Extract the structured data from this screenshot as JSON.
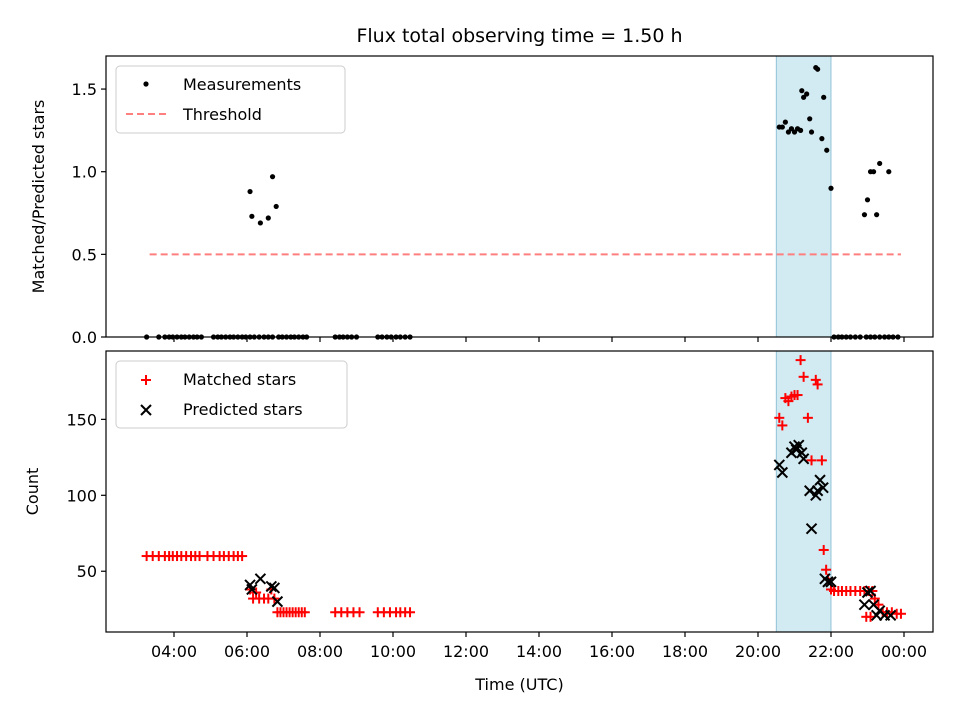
{
  "title": "Flux total observing time = 1.50 h",
  "colors": {
    "measurements": "#000000",
    "threshold": "#ff7f7f",
    "matched": "#ff0000",
    "predicted": "#000000",
    "span": "#add8e6"
  },
  "chart_data": [
    {
      "type": "scatter",
      "ylabel": "Matched/Predicted stars",
      "ylim": [
        0,
        1.7
      ],
      "yticks": [
        {
          "v": 0.0,
          "label": "0.0"
        },
        {
          "v": 0.5,
          "label": "0.5"
        },
        {
          "v": 1.0,
          "label": "1.0"
        },
        {
          "v": 1.5,
          "label": "1.5"
        }
      ],
      "legend": {
        "placement": "upper-left",
        "entries": [
          "Measurements",
          "Threshold"
        ]
      },
      "threshold": {
        "y": 0.5,
        "x_start": "03:20",
        "x_end": "23:55"
      },
      "highlight_span": {
        "start": "20:30",
        "end": "22:00"
      },
      "series": [
        {
          "name": "Measurements",
          "points": [
            [
              "03:15",
              0
            ],
            [
              "03:35",
              0
            ],
            [
              "03:45",
              0
            ],
            [
              "03:52",
              0
            ],
            [
              "03:58",
              0
            ],
            [
              "04:05",
              0
            ],
            [
              "04:12",
              0
            ],
            [
              "04:18",
              0
            ],
            [
              "04:25",
              0
            ],
            [
              "04:32",
              0
            ],
            [
              "04:38",
              0
            ],
            [
              "04:45",
              0
            ],
            [
              "05:05",
              0
            ],
            [
              "05:12",
              0
            ],
            [
              "05:18",
              0
            ],
            [
              "05:25",
              0
            ],
            [
              "05:32",
              0
            ],
            [
              "05:38",
              0
            ],
            [
              "05:45",
              0
            ],
            [
              "05:52",
              0
            ],
            [
              "05:58",
              0
            ],
            [
              "06:05",
              0
            ],
            [
              "06:12",
              0
            ],
            [
              "06:20",
              0
            ],
            [
              "06:28",
              0
            ],
            [
              "06:35",
              0
            ],
            [
              "06:42",
              0
            ],
            [
              "06:05",
              0.88
            ],
            [
              "06:08",
              0.73
            ],
            [
              "06:22",
              0.69
            ],
            [
              "06:35",
              0.72
            ],
            [
              "06:42",
              0.97
            ],
            [
              "06:48",
              0.79
            ],
            [
              "06:52",
              0
            ],
            [
              "06:58",
              0
            ],
            [
              "07:05",
              0
            ],
            [
              "07:12",
              0
            ],
            [
              "07:18",
              0
            ],
            [
              "07:25",
              0
            ],
            [
              "07:32",
              0
            ],
            [
              "07:38",
              0
            ],
            [
              "08:25",
              0
            ],
            [
              "08:32",
              0
            ],
            [
              "08:38",
              0
            ],
            [
              "08:45",
              0
            ],
            [
              "08:52",
              0
            ],
            [
              "09:00",
              0
            ],
            [
              "09:35",
              0
            ],
            [
              "09:42",
              0
            ],
            [
              "09:50",
              0
            ],
            [
              "09:57",
              0
            ],
            [
              "10:05",
              0
            ],
            [
              "10:12",
              0
            ],
            [
              "10:20",
              0
            ],
            [
              "10:28",
              0
            ],
            [
              "20:35",
              1.27
            ],
            [
              "20:40",
              1.27
            ],
            [
              "20:45",
              1.3
            ],
            [
              "20:50",
              1.24
            ],
            [
              "20:55",
              1.26
            ],
            [
              "21:00",
              1.24
            ],
            [
              "21:05",
              1.26
            ],
            [
              "21:10",
              1.25
            ],
            [
              "21:12",
              1.49
            ],
            [
              "21:15",
              1.45
            ],
            [
              "21:20",
              1.47
            ],
            [
              "21:25",
              1.32
            ],
            [
              "21:28",
              1.24
            ],
            [
              "21:35",
              1.63
            ],
            [
              "21:38",
              1.62
            ],
            [
              "21:45",
              1.2
            ],
            [
              "21:48",
              1.45
            ],
            [
              "21:53",
              1.13
            ],
            [
              "22:00",
              0.9
            ],
            [
              "22:05",
              0
            ],
            [
              "22:12",
              0
            ],
            [
              "22:18",
              0
            ],
            [
              "22:25",
              0
            ],
            [
              "22:32",
              0
            ],
            [
              "22:40",
              0
            ],
            [
              "22:48",
              0
            ],
            [
              "22:58",
              0
            ],
            [
              "23:05",
              0
            ],
            [
              "23:12",
              0
            ],
            [
              "23:20",
              0
            ],
            [
              "23:28",
              0
            ],
            [
              "23:35",
              0
            ],
            [
              "23:42",
              0
            ],
            [
              "23:50",
              0
            ],
            [
              "22:55",
              0.74
            ],
            [
              "23:00",
              0.83
            ],
            [
              "23:05",
              1.0
            ],
            [
              "23:10",
              1.0
            ],
            [
              "23:15",
              0.74
            ],
            [
              "23:20",
              1.05
            ],
            [
              "23:35",
              1.0
            ]
          ]
        }
      ]
    },
    {
      "type": "scatter",
      "ylabel": "Count",
      "xlabel": "Time (UTC)",
      "ylim": [
        10,
        195
      ],
      "yticks": [
        {
          "v": 50,
          "label": "50"
        },
        {
          "v": 100,
          "label": "100"
        },
        {
          "v": 150,
          "label": "150"
        }
      ],
      "xticks": [
        "04:00",
        "06:00",
        "08:00",
        "10:00",
        "12:00",
        "14:00",
        "16:00",
        "18:00",
        "20:00",
        "22:00",
        "00:00"
      ],
      "legend": {
        "placement": "upper-left",
        "entries": [
          "Matched stars",
          "Predicted stars"
        ]
      },
      "highlight_span": {
        "start": "20:30",
        "end": "22:00"
      },
      "series": [
        {
          "name": "Matched stars",
          "points": [
            [
              "03:15",
              60
            ],
            [
              "03:25",
              60
            ],
            [
              "03:35",
              60
            ],
            [
              "03:45",
              60
            ],
            [
              "03:52",
              60
            ],
            [
              "03:58",
              60
            ],
            [
              "04:05",
              60
            ],
            [
              "04:12",
              60
            ],
            [
              "04:20",
              60
            ],
            [
              "04:28",
              60
            ],
            [
              "04:35",
              60
            ],
            [
              "04:42",
              60
            ],
            [
              "04:55",
              60
            ],
            [
              "05:05",
              60
            ],
            [
              "05:15",
              60
            ],
            [
              "05:22",
              60
            ],
            [
              "05:30",
              60
            ],
            [
              "05:38",
              60
            ],
            [
              "05:45",
              60
            ],
            [
              "05:52",
              60
            ],
            [
              "06:05",
              38
            ],
            [
              "06:10",
              32
            ],
            [
              "06:15",
              36
            ],
            [
              "06:20",
              32
            ],
            [
              "06:28",
              32
            ],
            [
              "06:35",
              32
            ],
            [
              "06:40",
              38
            ],
            [
              "06:45",
              32
            ],
            [
              "06:50",
              23
            ],
            [
              "06:55",
              23
            ],
            [
              "07:00",
              23
            ],
            [
              "07:05",
              23
            ],
            [
              "07:10",
              23
            ],
            [
              "07:15",
              23
            ],
            [
              "07:20",
              23
            ],
            [
              "07:25",
              23
            ],
            [
              "07:30",
              23
            ],
            [
              "07:35",
              23
            ],
            [
              "08:25",
              23
            ],
            [
              "08:35",
              23
            ],
            [
              "08:45",
              23
            ],
            [
              "08:55",
              23
            ],
            [
              "09:05",
              23
            ],
            [
              "09:35",
              23
            ],
            [
              "09:45",
              23
            ],
            [
              "09:55",
              23
            ],
            [
              "10:05",
              23
            ],
            [
              "10:12",
              23
            ],
            [
              "10:20",
              23
            ],
            [
              "10:28",
              23
            ],
            [
              "20:35",
              151
            ],
            [
              "20:40",
              146
            ],
            [
              "20:45",
              164
            ],
            [
              "20:50",
              162
            ],
            [
              "20:55",
              165
            ],
            [
              "21:00",
              166
            ],
            [
              "21:05",
              166
            ],
            [
              "21:10",
              189
            ],
            [
              "21:15",
              178
            ],
            [
              "21:22",
              151
            ],
            [
              "21:28",
              123
            ],
            [
              "21:35",
              176
            ],
            [
              "21:38",
              173
            ],
            [
              "21:45",
              123
            ],
            [
              "21:48",
              64
            ],
            [
              "21:52",
              51
            ],
            [
              "21:55",
              45
            ],
            [
              "22:00",
              38
            ],
            [
              "22:05",
              37
            ],
            [
              "22:12",
              37
            ],
            [
              "22:18",
              37
            ],
            [
              "22:25",
              37
            ],
            [
              "22:32",
              37
            ],
            [
              "22:40",
              37
            ],
            [
              "22:48",
              37
            ],
            [
              "22:55",
              37
            ],
            [
              "23:02",
              37
            ],
            [
              "23:08",
              37
            ],
            [
              "23:12",
              32
            ],
            [
              "23:18",
              28
            ],
            [
              "23:25",
              23
            ],
            [
              "23:32",
              23
            ],
            [
              "23:40",
              23
            ],
            [
              "23:48",
              22
            ],
            [
              "23:55",
              22
            ],
            [
              "22:58",
              20
            ],
            [
              "23:05",
              20
            ]
          ]
        },
        {
          "name": "Predicted stars",
          "points": [
            [
              "06:05",
              41
            ],
            [
              "06:08",
              38
            ],
            [
              "06:22",
              45
            ],
            [
              "06:40",
              40
            ],
            [
              "06:45",
              39
            ],
            [
              "06:50",
              30
            ],
            [
              "20:35",
              120
            ],
            [
              "20:40",
              115
            ],
            [
              "20:55",
              128
            ],
            [
              "21:00",
              132
            ],
            [
              "21:03",
              130
            ],
            [
              "21:07",
              133
            ],
            [
              "21:12",
              128
            ],
            [
              "21:15",
              124
            ],
            [
              "21:25",
              103
            ],
            [
              "21:28",
              78
            ],
            [
              "21:35",
              100
            ],
            [
              "21:38",
              103
            ],
            [
              "21:42",
              110
            ],
            [
              "21:47",
              105
            ],
            [
              "21:50",
              45
            ],
            [
              "21:55",
              43
            ],
            [
              "22:00",
              43
            ],
            [
              "22:55",
              28
            ],
            [
              "23:00",
              36
            ],
            [
              "23:05",
              37
            ],
            [
              "23:10",
              28
            ],
            [
              "23:15",
              21
            ],
            [
              "23:20",
              24
            ],
            [
              "23:28",
              21
            ],
            [
              "23:38",
              21
            ]
          ]
        }
      ]
    }
  ]
}
